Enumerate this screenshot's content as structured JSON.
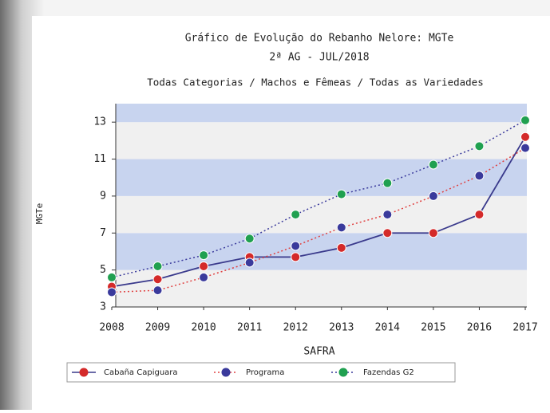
{
  "chart_data": {
    "type": "line",
    "title": "Gráfico de Evolução do Rebanho Nelore: MGTe",
    "subtitle": "2ª AG - JUL/2018",
    "description": "Todas Categorias / Machos e Fêmeas / Todas as Variedades",
    "x_label": "SAFRA",
    "y_label": "MGTe",
    "categories": [
      "2008",
      "2009",
      "2010",
      "2011",
      "2012",
      "2013",
      "2014",
      "2015",
      "2016",
      "2017"
    ],
    "series": [
      {
        "name": "Cabaña Capiguara",
        "color": "#d42a2a",
        "line_color": "#3a3a8c",
        "line_style": "solid",
        "values": [
          4.1,
          4.5,
          5.2,
          5.7,
          5.7,
          6.2,
          7.0,
          7.0,
          8.0,
          12.2
        ]
      },
      {
        "name": "Programa",
        "color": "#3a3a9c",
        "line_color": "#e04040",
        "line_style": "dotted",
        "values": [
          3.8,
          3.9,
          4.6,
          5.4,
          6.3,
          7.3,
          8.0,
          9.0,
          10.1,
          11.6
        ]
      },
      {
        "name": "Fazendas G2",
        "color": "#20a050",
        "line_color": "#3a3a9c",
        "line_style": "dotted",
        "values": [
          4.6,
          5.2,
          5.8,
          6.7,
          8.0,
          9.1,
          9.7,
          10.7,
          11.7,
          13.1
        ]
      }
    ],
    "ylim": [
      3,
      14
    ],
    "yticks": [
      3,
      5,
      7,
      9,
      11,
      13
    ],
    "grid": true
  }
}
